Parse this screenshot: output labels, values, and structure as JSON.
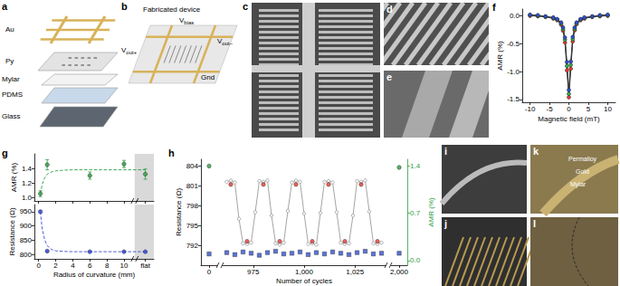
{
  "figure": {
    "a": {
      "label": "a",
      "layers": [
        "Au",
        "Py",
        "Mylar",
        "PDMS",
        "Glass"
      ]
    },
    "b": {
      "label": "b",
      "title": "Fabricated device",
      "terminals": [
        [
          "V",
          "bias"
        ],
        [
          "V",
          "out+"
        ],
        [
          "V",
          "out−"
        ],
        [
          "Gnd"
        ]
      ]
    },
    "c": {
      "label": "c"
    },
    "d": {
      "label": "d"
    },
    "e": {
      "label": "e"
    },
    "i": {
      "label": "i"
    },
    "j": {
      "label": "j"
    },
    "k": {
      "label": "k",
      "layers": [
        "Permalloy",
        "Gold",
        "Mylar"
      ]
    },
    "l": {
      "label": "l"
    }
  },
  "chart_data": [
    {
      "type": "line",
      "title": "f",
      "xlabel": "Magnetic field (mT)",
      "ylabel": "AMR (%)",
      "x": [
        -10,
        -8,
        -6,
        -4,
        -3,
        -2,
        -1.5,
        -1,
        -0.5,
        0,
        0.5,
        1,
        1.5,
        2,
        3,
        4,
        6,
        8,
        10
      ],
      "series": [
        {
          "color": "#e53a2f",
          "marker": "circle",
          "values": [
            0.0,
            -0.01,
            -0.02,
            -0.05,
            -0.08,
            -0.16,
            -0.27,
            -0.48,
            -0.98,
            -1.46,
            -0.95,
            -0.46,
            -0.26,
            -0.15,
            -0.08,
            -0.05,
            -0.02,
            -0.01,
            0.0
          ]
        },
        {
          "color": "#3aa84a",
          "marker": "circle",
          "values": [
            0.01,
            0.0,
            -0.02,
            -0.04,
            -0.07,
            -0.14,
            -0.24,
            -0.43,
            -0.9,
            -1.4,
            -0.88,
            -0.42,
            -0.24,
            -0.14,
            -0.07,
            -0.04,
            -0.02,
            0.0,
            0.01
          ]
        },
        {
          "color": "#3050d0",
          "marker": "circle",
          "values": [
            0.02,
            0.01,
            -0.01,
            -0.03,
            -0.06,
            -0.12,
            -0.21,
            -0.39,
            -0.83,
            -1.33,
            -0.82,
            -0.38,
            -0.21,
            -0.12,
            -0.06,
            -0.03,
            -0.01,
            0.01,
            0.02
          ]
        }
      ],
      "xlim": [
        -12,
        12
      ],
      "xticks": [
        -10,
        -5,
        0,
        5,
        10
      ],
      "ylim": [
        -1.55,
        0.12
      ],
      "yticks": [
        -1.5,
        {
          "value": -1,
          "label": "-1.0"
        },
        -0.5,
        {
          "value": 0,
          "label": "0.0"
        }
      ],
      "grid": false
    },
    {
      "type": "scatter",
      "title": "g",
      "ylabel": "AMR (%)",
      "tick_labels": "y",
      "series": [
        {
          "type": "scatter",
          "color": "#2f9e44",
          "marker": "circle",
          "x": [
            0.2,
            1,
            6,
            10,
            12.5
          ],
          "values": [
            1.05,
            1.45,
            1.3,
            1.46,
            1.32
          ],
          "errors": [
            0.04,
            0.07,
            0.05,
            0.05,
            0.07
          ]
        },
        {
          "type": "line",
          "color": "#2f9e44",
          "marker": "none",
          "line_style": "dashed",
          "x": [
            0.2,
            0.4,
            0.7,
            1,
            1.5,
            2,
            3,
            4,
            6,
            8,
            10,
            12.5
          ],
          "values": [
            1.05,
            1.17,
            1.27,
            1.32,
            1.35,
            1.365,
            1.375,
            1.38,
            1.38,
            1.38,
            1.38,
            1.38
          ]
        }
      ],
      "xlim": [
        -0.5,
        13.5
      ],
      "xticks": [
        0,
        2,
        4,
        6,
        8,
        10,
        {
          "value": 12.5,
          "label": "flat"
        }
      ],
      "ylim": [
        0.95,
        1.6
      ],
      "yticks": [
        {
          "value": 1,
          "label": "1.0"
        },
        1.2,
        1.4
      ],
      "grid": false
    },
    {
      "type": "scatter",
      "xlabel": "Radius of curvature (mm)",
      "ylabel": "Resistance (Ω)",
      "series": [
        {
          "type": "scatter",
          "color": "#3b4fd8",
          "marker": "circle",
          "x": [
            0.2,
            1,
            6,
            10,
            12.5
          ],
          "values": [
            950,
            812,
            810,
            810,
            810
          ],
          "errors": [
            4,
            3,
            2,
            2,
            2
          ]
        },
        {
          "type": "line",
          "color": "#3b4fd8",
          "marker": "none",
          "line_style": "dashed",
          "x": [
            0.2,
            0.4,
            0.7,
            1,
            1.5,
            2,
            3,
            4,
            6,
            8,
            10,
            12.5
          ],
          "values": [
            950,
            893,
            852,
            831,
            818,
            813,
            811,
            810,
            810,
            810,
            810,
            810
          ]
        }
      ],
      "xlim": [
        -0.5,
        13.5
      ],
      "xticks": [
        0,
        2,
        4,
        6,
        8,
        10,
        {
          "value": 12.5,
          "label": "flat"
        }
      ],
      "ylim": [
        785,
        975
      ],
      "yticks": [
        800,
        850,
        900,
        950
      ],
      "grid": false
    },
    {
      "type": "scatter",
      "title": "h",
      "xlabel": "Number of cycles",
      "ylabel": "Resistance (Ω)",
      "y2label": "AMR (%)",
      "series": [
        {
          "type": "line",
          "color": "#9a9a9a",
          "marker": "open_circle",
          "x": [
            962,
            964,
            966,
            968,
            970,
            972,
            974,
            976,
            978,
            980,
            982,
            984,
            986,
            988,
            990,
            992,
            994,
            996,
            998,
            1000,
            1002,
            1004,
            1006,
            1008,
            1010,
            1012,
            1014,
            1016,
            1018,
            1020,
            1022,
            1024,
            1026,
            1028,
            1030,
            1032,
            1034,
            1036,
            1038
          ],
          "values": [
            801.6,
            801.8,
            801.5,
            796.0,
            792.3,
            792.2,
            792.4,
            797.0,
            801.7,
            801.6,
            801.8,
            796.5,
            792.3,
            792.1,
            792.4,
            797.2,
            801.5,
            801.8,
            801.6,
            796.8,
            792.2,
            792.3,
            792.1,
            796.9,
            801.6,
            801.7,
            801.5,
            797.0,
            792.4,
            792.2,
            792.3,
            796.5,
            801.7,
            801.6,
            801.8,
            797.1,
            792.3,
            792.2,
            792.4
          ]
        },
        {
          "type": "scatter",
          "color": "#e53a2f",
          "marker": "circle",
          "x": [
            964,
            972,
            980,
            988,
            996,
            1004,
            1012,
            1020,
            1028,
            1036
          ],
          "values": [
            801.2,
            792.6,
            801.2,
            792.6,
            801.2,
            792.6,
            801.2,
            792.6,
            801.2,
            792.6
          ]
        },
        {
          "type": "scatter",
          "color": "#3050d0",
          "marker": "square",
          "x": [
            0,
            962,
            966,
            970,
            974,
            978,
            982,
            986,
            990,
            994,
            998,
            1002,
            1006,
            1010,
            1014,
            1018,
            1022,
            1026,
            1030,
            1034,
            1038,
            2000
          ],
          "values": [
            790.7,
            790.9,
            790.6,
            791.0,
            790.8,
            790.5,
            790.9,
            791.1,
            790.7,
            790.8,
            791.0,
            790.6,
            790.9,
            790.7,
            791.0,
            790.8,
            790.6,
            790.9,
            791.1,
            790.7,
            790.8,
            790.8
          ]
        },
        {
          "type": "scatter",
          "color": "#2f9e44",
          "marker": "circle",
          "axis": "y2",
          "x": [
            0,
            2000
          ],
          "values": [
            1.4,
            1.38
          ]
        }
      ],
      "xlim": [
        -15,
        2015
      ],
      "xticks": [
        0,
        975,
        {
          "value": 1000,
          "label": "1,000"
        },
        {
          "value": 1025,
          "label": "1,025"
        },
        {
          "value": 2000,
          "label": "2,000"
        }
      ],
      "ylim": [
        789,
        805
      ],
      "yticks": [
        792,
        795,
        798,
        801,
        804
      ],
      "y2lim": [
        -0.07,
        1.5
      ],
      "y2ticks": [
        {
          "value": 0,
          "label": "0.0"
        },
        0.7,
        1.4
      ],
      "grid": false
    }
  ]
}
